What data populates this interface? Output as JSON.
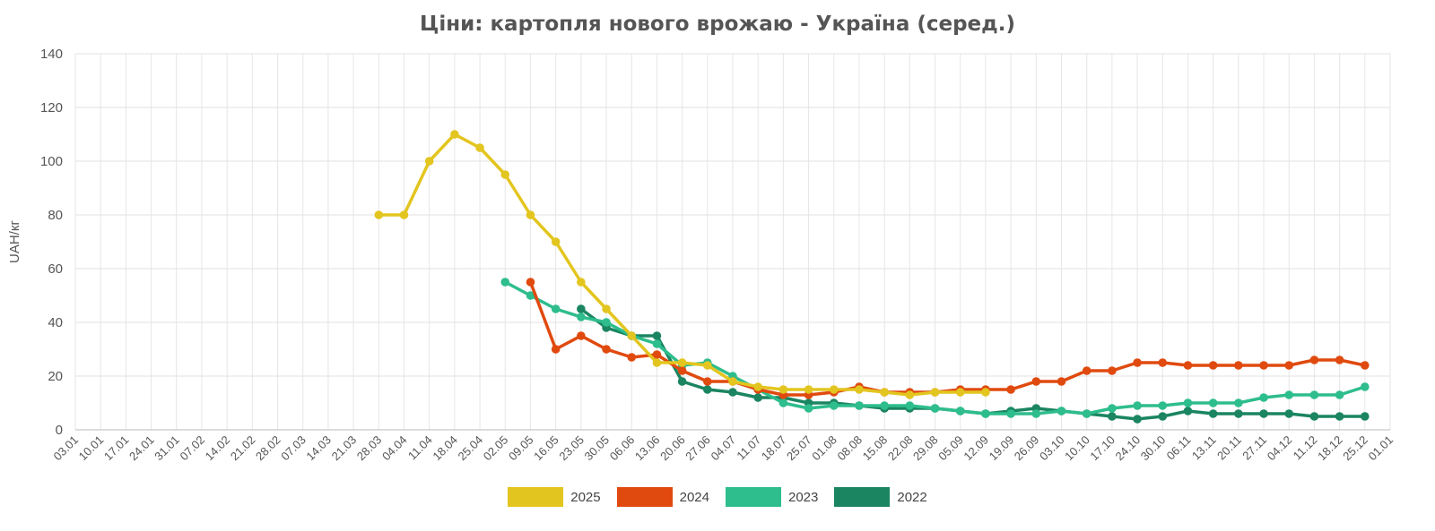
{
  "chart_data": {
    "type": "line",
    "title": "Ціни: картопля нового врожаю - Україна (серед.)",
    "xlabel": "",
    "ylabel": "UAH/кг",
    "ylim": [
      0,
      140
    ],
    "yticks": [
      0,
      20,
      40,
      60,
      80,
      100,
      120,
      140
    ],
    "grid": true,
    "legend_position": "bottom",
    "x_tick_labels": [
      "03.01",
      "10.01",
      "17.01",
      "24.01",
      "31.01",
      "07.02",
      "14.02",
      "21.02",
      "28.02",
      "07.03",
      "14.03",
      "21.03",
      "28.03",
      "04.04",
      "11.04",
      "18.04",
      "25.04",
      "02.05",
      "09.05",
      "16.05",
      "23.05",
      "30.05",
      "06.06",
      "13.06",
      "20.06",
      "27.06",
      "04.07",
      "11.07",
      "18.07",
      "25.07",
      "01.08",
      "08.08",
      "15.08",
      "22.08",
      "29.08",
      "05.09",
      "12.09",
      "19.09",
      "26.09",
      "03.10",
      "10.10",
      "17.10",
      "24.10",
      "30.10",
      "06.11",
      "13.11",
      "20.11",
      "27.11",
      "04.12",
      "11.12",
      "18.12",
      "25.12",
      "01.01"
    ],
    "series": [
      {
        "name": "2025",
        "color": "#e3c51f",
        "points": [
          [
            "28.03",
            80
          ],
          [
            "04.04",
            80
          ],
          [
            "11.04",
            100
          ],
          [
            "18.04",
            110
          ],
          [
            "25.04",
            105
          ],
          [
            "02.05",
            95
          ],
          [
            "09.05",
            80
          ],
          [
            "16.05",
            70
          ],
          [
            "23.05",
            55
          ],
          [
            "30.05",
            45
          ],
          [
            "06.06",
            35
          ],
          [
            "13.06",
            25
          ],
          [
            "20.06",
            25
          ],
          [
            "27.06",
            24
          ],
          [
            "04.07",
            18
          ],
          [
            "11.07",
            16
          ],
          [
            "18.07",
            15
          ],
          [
            "25.07",
            15
          ],
          [
            "01.08",
            15
          ],
          [
            "08.08",
            15
          ],
          [
            "15.08",
            14
          ],
          [
            "22.08",
            13
          ],
          [
            "29.08",
            14
          ],
          [
            "05.09",
            14
          ],
          [
            "12.09",
            14
          ]
        ]
      },
      {
        "name": "2024",
        "color": "#e04a0f",
        "points": [
          [
            "09.05",
            55
          ],
          [
            "16.05",
            30
          ],
          [
            "23.05",
            35
          ],
          [
            "30.05",
            30
          ],
          [
            "06.06",
            27
          ],
          [
            "13.06",
            28
          ],
          [
            "20.06",
            22
          ],
          [
            "27.06",
            18
          ],
          [
            "04.07",
            18
          ],
          [
            "11.07",
            15
          ],
          [
            "18.07",
            13
          ],
          [
            "25.07",
            13
          ],
          [
            "01.08",
            14
          ],
          [
            "08.08",
            16
          ],
          [
            "15.08",
            14
          ],
          [
            "22.08",
            14
          ],
          [
            "29.08",
            14
          ],
          [
            "05.09",
            15
          ],
          [
            "12.09",
            15
          ],
          [
            "19.09",
            15
          ],
          [
            "26.09",
            18
          ],
          [
            "03.10",
            18
          ],
          [
            "10.10",
            22
          ],
          [
            "17.10",
            22
          ],
          [
            "24.10",
            25
          ],
          [
            "30.10",
            25
          ],
          [
            "06.11",
            24
          ],
          [
            "13.11",
            24
          ],
          [
            "20.11",
            24
          ],
          [
            "27.11",
            24
          ],
          [
            "04.12",
            24
          ],
          [
            "11.12",
            26
          ],
          [
            "18.12",
            26
          ],
          [
            "25.12",
            24
          ]
        ]
      },
      {
        "name": "2023",
        "color": "#2ebd8c",
        "points": [
          [
            "02.05",
            55
          ],
          [
            "09.05",
            50
          ],
          [
            "16.05",
            45
          ],
          [
            "23.05",
            42
          ],
          [
            "30.05",
            40
          ],
          [
            "06.06",
            35
          ],
          [
            "13.06",
            32
          ],
          [
            "20.06",
            24
          ],
          [
            "27.06",
            25
          ],
          [
            "04.07",
            20
          ],
          [
            "11.07",
            15
          ],
          [
            "18.07",
            10
          ],
          [
            "25.07",
            8
          ],
          [
            "01.08",
            9
          ],
          [
            "08.08",
            9
          ],
          [
            "15.08",
            9
          ],
          [
            "22.08",
            9
          ],
          [
            "29.08",
            8
          ],
          [
            "05.09",
            7
          ],
          [
            "12.09",
            6
          ],
          [
            "19.09",
            6
          ],
          [
            "26.09",
            6
          ],
          [
            "03.10",
            7
          ],
          [
            "10.10",
            6
          ],
          [
            "17.10",
            8
          ],
          [
            "24.10",
            9
          ],
          [
            "30.10",
            9
          ],
          [
            "06.11",
            10
          ],
          [
            "13.11",
            10
          ],
          [
            "20.11",
            10
          ],
          [
            "27.11",
            12
          ],
          [
            "04.12",
            13
          ],
          [
            "11.12",
            13
          ],
          [
            "18.12",
            13
          ],
          [
            "25.12",
            16
          ]
        ]
      },
      {
        "name": "2022",
        "color": "#1b8562",
        "points": [
          [
            "23.05",
            45
          ],
          [
            "30.05",
            38
          ],
          [
            "06.06",
            35
          ],
          [
            "13.06",
            35
          ],
          [
            "20.06",
            18
          ],
          [
            "27.06",
            15
          ],
          [
            "04.07",
            14
          ],
          [
            "11.07",
            12
          ],
          [
            "18.07",
            12
          ],
          [
            "25.07",
            10
          ],
          [
            "01.08",
            10
          ],
          [
            "08.08",
            9
          ],
          [
            "15.08",
            8
          ],
          [
            "22.08",
            8
          ],
          [
            "29.08",
            8
          ],
          [
            "05.09",
            7
          ],
          [
            "12.09",
            6
          ],
          [
            "19.09",
            7
          ],
          [
            "26.09",
            8
          ],
          [
            "03.10",
            7
          ],
          [
            "10.10",
            6
          ],
          [
            "17.10",
            5
          ],
          [
            "24.10",
            4
          ],
          [
            "30.10",
            5
          ],
          [
            "06.11",
            7
          ],
          [
            "13.11",
            6
          ],
          [
            "20.11",
            6
          ],
          [
            "27.11",
            6
          ],
          [
            "04.12",
            6
          ],
          [
            "11.12",
            5
          ],
          [
            "18.12",
            5
          ],
          [
            "25.12",
            5
          ]
        ]
      }
    ]
  }
}
